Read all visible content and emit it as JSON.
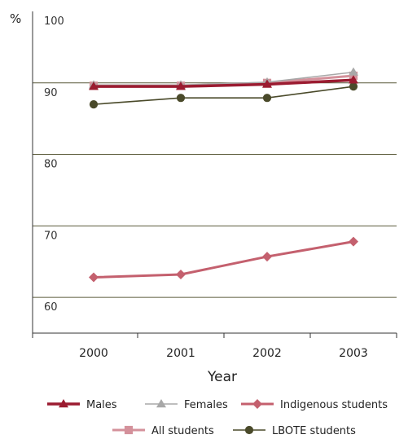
{
  "chart_data": {
    "type": "line",
    "ylabel": "%",
    "xlabel": "Year",
    "categories": [
      "2000",
      "2001",
      "2002",
      "2003"
    ],
    "y_ticks": [
      60,
      70,
      80,
      90,
      100
    ],
    "ylim": [
      55,
      100
    ],
    "grid": "horizontal",
    "legend_position": "bottom",
    "series": [
      {
        "name": "Males",
        "values": [
          89.5,
          89.5,
          89.8,
          90.4
        ],
        "color": "#9b1b30",
        "marker": "triangle"
      },
      {
        "name": "Females",
        "values": [
          89.7,
          89.7,
          90.1,
          91.5
        ],
        "color": "#a8a8a8",
        "marker": "triangle"
      },
      {
        "name": "Indigenous students",
        "values": [
          62.8,
          63.2,
          65.7,
          67.8
        ],
        "color": "#c4606e",
        "marker": "diamond"
      },
      {
        "name": "All students",
        "values": [
          89.6,
          89.6,
          90.0,
          91.0
        ],
        "color": "#d4919b",
        "marker": "square"
      },
      {
        "name": "LBOTE students",
        "values": [
          87.0,
          87.9,
          87.9,
          89.5
        ],
        "color": "#4a4a2a",
        "marker": "circle"
      }
    ]
  }
}
